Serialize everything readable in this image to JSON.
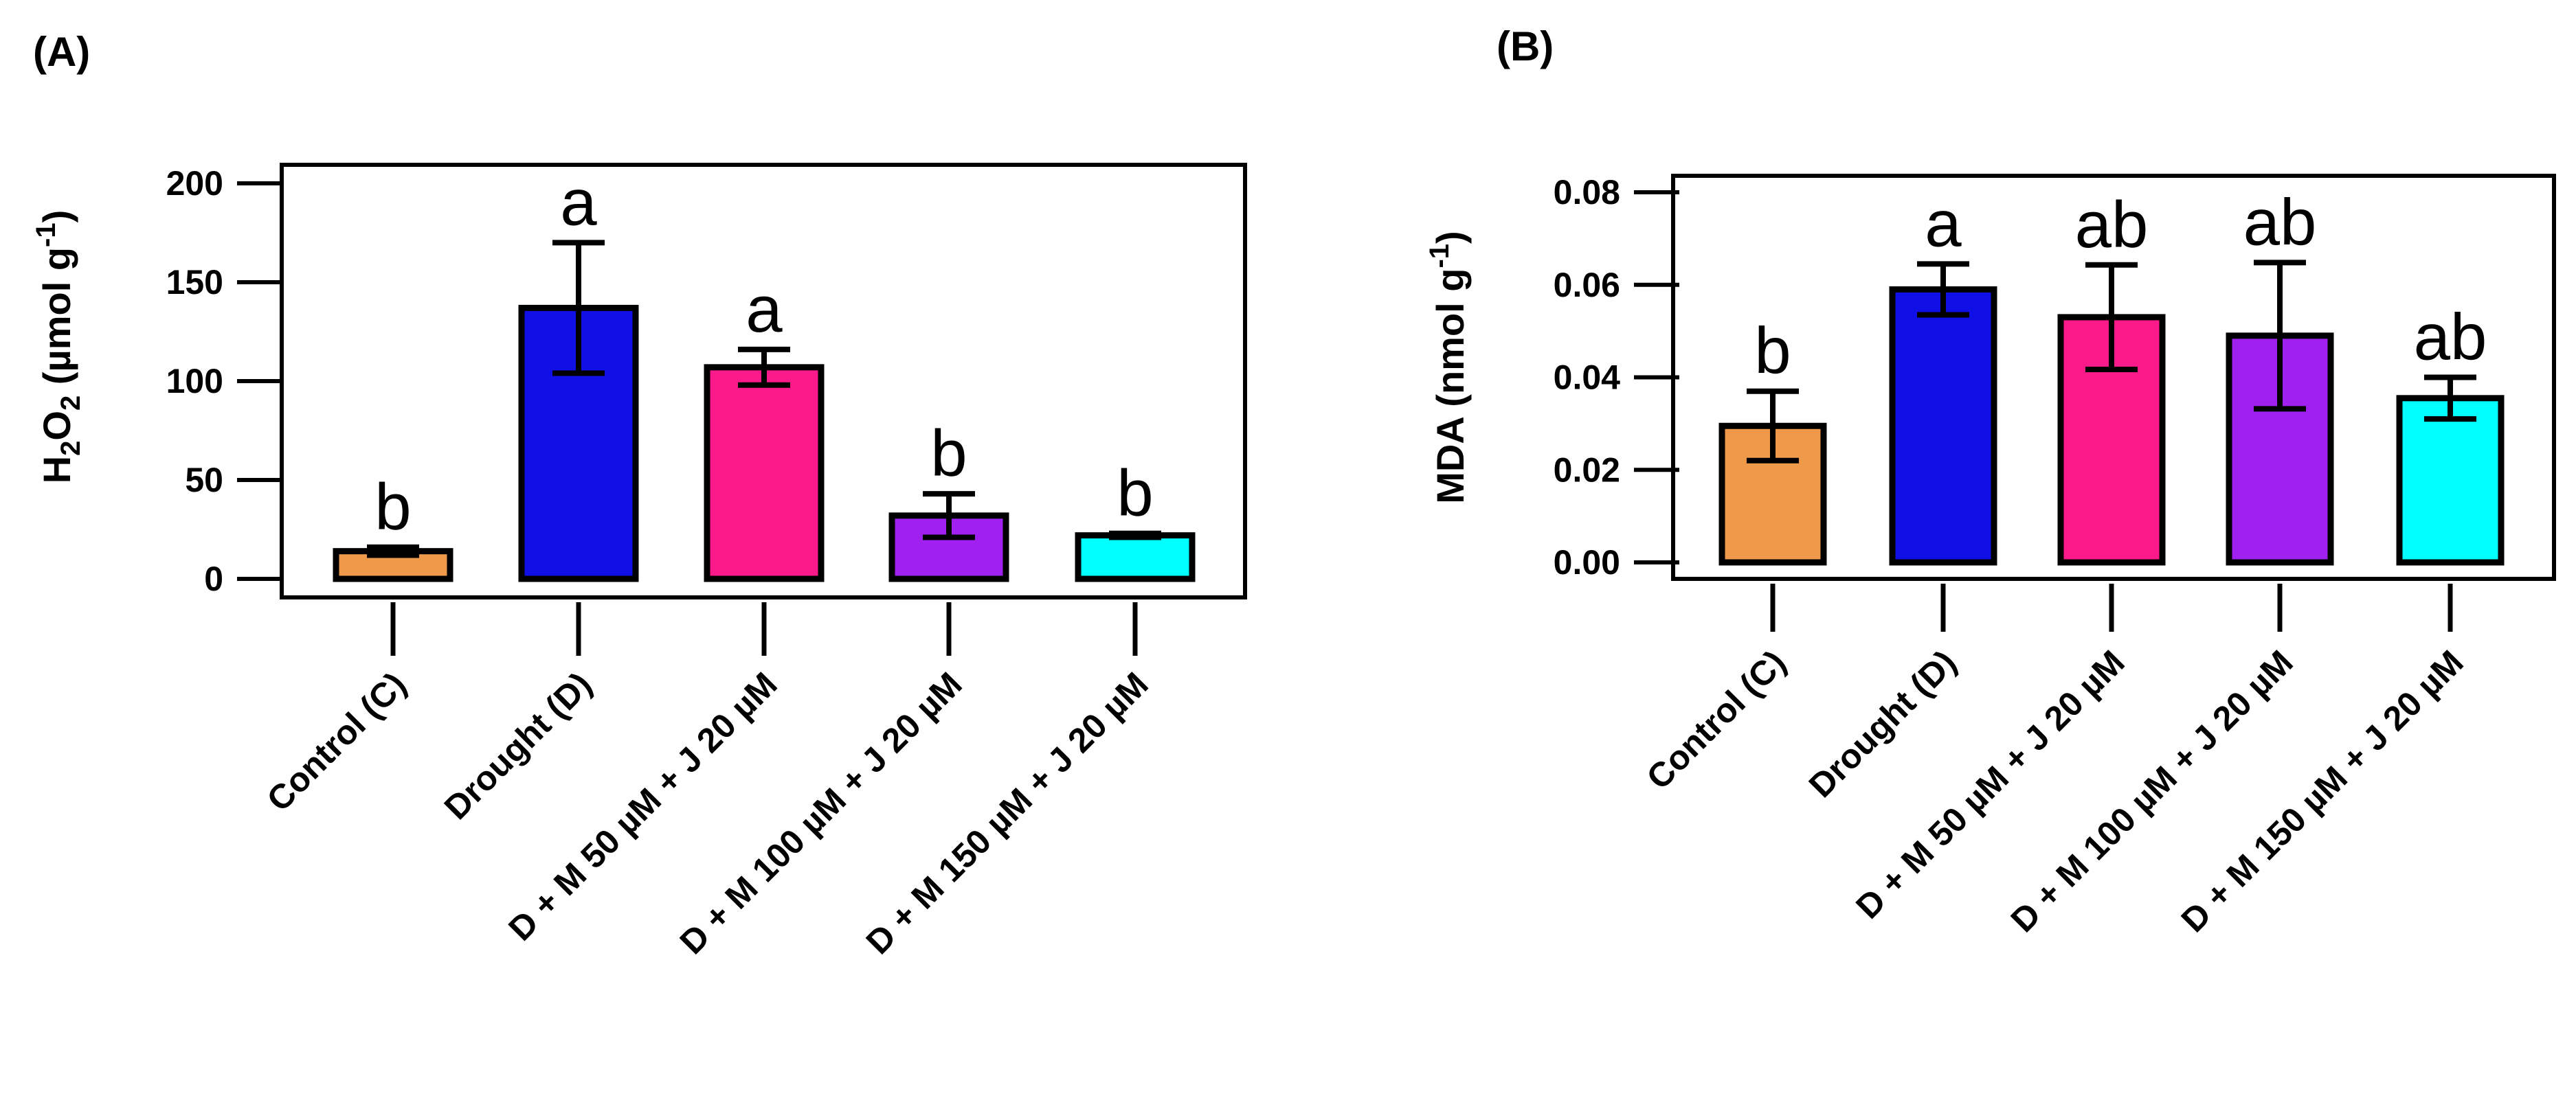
{
  "chart_data": [
    {
      "panel_label": "(A)",
      "type": "bar",
      "ylabel": {
        "main": "H",
        "sub1": "2",
        "mid": "O",
        "sub2": "2",
        "unit": " (µmol g",
        "sup": "-1",
        "end": ")"
      },
      "ylim": [
        0,
        200
      ],
      "yticks": [
        0,
        50,
        100,
        150,
        200
      ],
      "ytick_labels": [
        "0",
        "50",
        "100",
        "150",
        "200"
      ],
      "categories": [
        "Control (C)",
        "Drought (D)",
        "D + M 50 µM + J 20 µM",
        "D + M 100 µM + J 20 µM",
        "D + M 150 µM + J 20 µM"
      ],
      "values": [
        14,
        137,
        107,
        32,
        22
      ],
      "errors": [
        2,
        33,
        9,
        11,
        1
      ],
      "significance": [
        "b",
        "a",
        "a",
        "b",
        "b"
      ],
      "colors": [
        "#ef9a4b",
        "#1010e6",
        "#fa1a8a",
        "#a020f0",
        "#00ffff"
      ]
    },
    {
      "panel_label": "(B)",
      "type": "bar",
      "ylabel": {
        "main": "MDA (nmol g",
        "sup": "-1",
        "end": ")"
      },
      "ylim": [
        0,
        0.08
      ],
      "yticks": [
        0,
        0.02,
        0.04,
        0.06,
        0.08
      ],
      "ytick_labels": [
        "0.00",
        "0.02",
        "0.04",
        "0.06",
        "0.08"
      ],
      "categories": [
        "Control (C)",
        "Drought (D)",
        "D + M 50 µM + J 20 µM",
        "D + M 100 µM + J 20 µM",
        "D + M 150 µM + J 20 µM"
      ],
      "values": [
        0.0295,
        0.059,
        0.053,
        0.049,
        0.0355
      ],
      "errors": [
        0.0075,
        0.0055,
        0.0113,
        0.0158,
        0.0045
      ],
      "significance": [
        "b",
        "a",
        "ab",
        "ab",
        "ab"
      ],
      "colors": [
        "#ef9a4b",
        "#1010e6",
        "#fa1a8a",
        "#a020f0",
        "#00ffff"
      ]
    }
  ]
}
